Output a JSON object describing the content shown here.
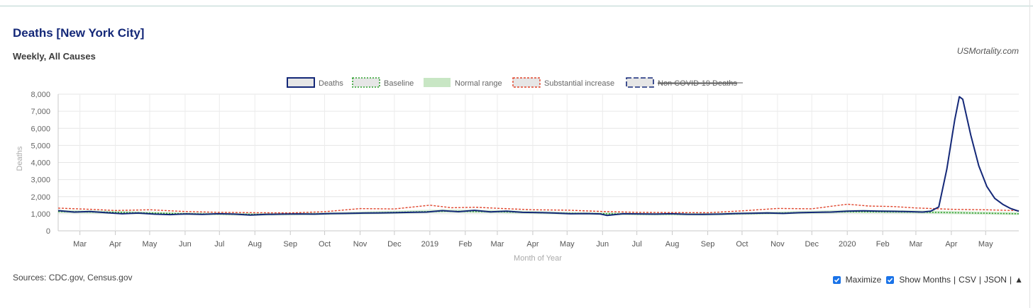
{
  "header": {
    "title": "Deaths [New York City]",
    "subtitle": "Weekly, All Causes",
    "credit": "USMortality.com"
  },
  "footer": {
    "sources": "Sources: CDC.gov, Census.gov",
    "maximize_label": "Maximize",
    "maximize_checked": true,
    "show_months_label": "Show Months",
    "show_months_checked": true,
    "csv_label": "CSV",
    "json_label": "JSON",
    "sep": "|",
    "scroll_top_label": "▲"
  },
  "chart_data": {
    "type": "line",
    "title": "Deaths [New York City]",
    "subtitle": "Weekly, All Causes",
    "xlabel": "Month of Year",
    "ylabel": "Deaths",
    "ylim": [
      0,
      8000
    ],
    "yticks": [
      0,
      1000,
      2000,
      3000,
      4000,
      5000,
      6000,
      7000,
      8000
    ],
    "ytick_labels": [
      "0",
      "1,000",
      "2,000",
      "3,000",
      "4,000",
      "5,000",
      "6,000",
      "7,000",
      "8,000"
    ],
    "x_start": "2018-02-10",
    "x_end": "2020-05-30",
    "grid": true,
    "legend_position": "top",
    "xticks": [
      {
        "date": "2018-03-01",
        "label": "Mar"
      },
      {
        "date": "2018-04-01",
        "label": "Apr"
      },
      {
        "date": "2018-05-01",
        "label": "May"
      },
      {
        "date": "2018-06-01",
        "label": "Jun"
      },
      {
        "date": "2018-07-01",
        "label": "Jul"
      },
      {
        "date": "2018-08-01",
        "label": "Aug"
      },
      {
        "date": "2018-09-01",
        "label": "Sep"
      },
      {
        "date": "2018-10-01",
        "label": "Oct"
      },
      {
        "date": "2018-11-01",
        "label": "Nov"
      },
      {
        "date": "2018-12-01",
        "label": "Dec"
      },
      {
        "date": "2019-01-01",
        "label": "2019"
      },
      {
        "date": "2019-02-01",
        "label": "Feb"
      },
      {
        "date": "2019-03-01",
        "label": "Mar"
      },
      {
        "date": "2019-04-01",
        "label": "Apr"
      },
      {
        "date": "2019-05-01",
        "label": "May"
      },
      {
        "date": "2019-06-01",
        "label": "Jun"
      },
      {
        "date": "2019-07-01",
        "label": "Jul"
      },
      {
        "date": "2019-08-01",
        "label": "Aug"
      },
      {
        "date": "2019-09-01",
        "label": "Sep"
      },
      {
        "date": "2019-10-01",
        "label": "Oct"
      },
      {
        "date": "2019-11-01",
        "label": "Nov"
      },
      {
        "date": "2019-12-01",
        "label": "Dec"
      },
      {
        "date": "2020-01-01",
        "label": "2020"
      },
      {
        "date": "2020-02-01",
        "label": "Feb"
      },
      {
        "date": "2020-03-01",
        "label": "Mar"
      },
      {
        "date": "2020-04-01",
        "label": "Apr"
      },
      {
        "date": "2020-05-01",
        "label": "May"
      }
    ],
    "series": [
      {
        "name": "Deaths",
        "color": "#142878",
        "style": "solid",
        "points": [
          [
            "2018-02-10",
            1180
          ],
          [
            "2018-02-24",
            1100
          ],
          [
            "2018-03-10",
            1130
          ],
          [
            "2018-03-24",
            1060
          ],
          [
            "2018-04-07",
            1000
          ],
          [
            "2018-04-21",
            1040
          ],
          [
            "2018-05-05",
            980
          ],
          [
            "2018-05-19",
            950
          ],
          [
            "2018-06-02",
            990
          ],
          [
            "2018-06-16",
            960
          ],
          [
            "2018-06-30",
            1000
          ],
          [
            "2018-07-14",
            980
          ],
          [
            "2018-07-28",
            920
          ],
          [
            "2018-08-11",
            960
          ],
          [
            "2018-08-25",
            980
          ],
          [
            "2018-09-08",
            990
          ],
          [
            "2018-09-22",
            980
          ],
          [
            "2018-10-06",
            1010
          ],
          [
            "2018-10-20",
            1020
          ],
          [
            "2018-11-03",
            1040
          ],
          [
            "2018-11-17",
            1050
          ],
          [
            "2018-12-01",
            1060
          ],
          [
            "2018-12-15",
            1080
          ],
          [
            "2018-12-29",
            1100
          ],
          [
            "2019-01-12",
            1180
          ],
          [
            "2019-01-26",
            1120
          ],
          [
            "2019-02-09",
            1200
          ],
          [
            "2019-02-23",
            1110
          ],
          [
            "2019-03-09",
            1150
          ],
          [
            "2019-03-23",
            1080
          ],
          [
            "2019-04-06",
            1070
          ],
          [
            "2019-04-20",
            1040
          ],
          [
            "2019-05-04",
            1000
          ],
          [
            "2019-05-18",
            1010
          ],
          [
            "2019-05-30",
            990
          ],
          [
            "2019-06-05",
            900
          ],
          [
            "2019-06-19",
            1000
          ],
          [
            "2019-07-03",
            990
          ],
          [
            "2019-07-17",
            980
          ],
          [
            "2019-07-31",
            1000
          ],
          [
            "2019-08-14",
            970
          ],
          [
            "2019-08-28",
            960
          ],
          [
            "2019-09-11",
            980
          ],
          [
            "2019-09-25",
            1010
          ],
          [
            "2019-10-09",
            1030
          ],
          [
            "2019-10-23",
            1050
          ],
          [
            "2019-11-06",
            1020
          ],
          [
            "2019-11-20",
            1060
          ],
          [
            "2019-12-04",
            1080
          ],
          [
            "2019-12-18",
            1100
          ],
          [
            "2020-01-01",
            1150
          ],
          [
            "2020-01-15",
            1170
          ],
          [
            "2020-01-29",
            1150
          ],
          [
            "2020-02-12",
            1140
          ],
          [
            "2020-02-26",
            1120
          ],
          [
            "2020-03-07",
            1100
          ],
          [
            "2020-03-14",
            1150
          ],
          [
            "2020-03-21",
            1400
          ],
          [
            "2020-03-28",
            3600
          ],
          [
            "2020-04-04",
            6500
          ],
          [
            "2020-04-08",
            7850
          ],
          [
            "2020-04-11",
            7700
          ],
          [
            "2020-04-18",
            5600
          ],
          [
            "2020-04-25",
            3800
          ],
          [
            "2020-05-02",
            2600
          ],
          [
            "2020-05-09",
            1900
          ],
          [
            "2020-05-16",
            1550
          ],
          [
            "2020-05-23",
            1300
          ],
          [
            "2020-05-30",
            1150
          ]
        ]
      },
      {
        "name": "Baseline",
        "color": "#2ca02c",
        "style": "dotted",
        "points": [
          [
            "2018-02-10",
            1130
          ],
          [
            "2018-04-01",
            1080
          ],
          [
            "2018-06-01",
            1000
          ],
          [
            "2018-08-01",
            960
          ],
          [
            "2018-10-01",
            1000
          ],
          [
            "2018-12-01",
            1080
          ],
          [
            "2019-01-15",
            1150
          ],
          [
            "2019-03-01",
            1120
          ],
          [
            "2019-05-01",
            1030
          ],
          [
            "2019-07-01",
            980
          ],
          [
            "2019-09-01",
            970
          ],
          [
            "2019-11-01",
            1040
          ],
          [
            "2020-01-01",
            1120
          ],
          [
            "2020-03-01",
            1100
          ],
          [
            "2020-05-30",
            1000
          ]
        ]
      },
      {
        "name": "Normal range",
        "color": "#c8e6c4",
        "style": "band",
        "points": [
          [
            "2018-02-10",
            1040,
            1230
          ],
          [
            "2018-04-01",
            990,
            1170
          ],
          [
            "2018-06-01",
            920,
            1080
          ],
          [
            "2018-08-01",
            880,
            1040
          ],
          [
            "2018-10-01",
            920,
            1080
          ],
          [
            "2018-12-01",
            990,
            1180
          ],
          [
            "2019-01-15",
            1060,
            1260
          ],
          [
            "2019-03-01",
            1030,
            1220
          ],
          [
            "2019-05-01",
            950,
            1110
          ],
          [
            "2019-07-01",
            900,
            1060
          ],
          [
            "2019-09-01",
            890,
            1050
          ],
          [
            "2019-11-01",
            960,
            1130
          ],
          [
            "2020-01-01",
            1030,
            1230
          ],
          [
            "2020-03-01",
            1010,
            1200
          ],
          [
            "2020-05-30",
            920,
            1090
          ]
        ]
      },
      {
        "name": "Substantial increase",
        "color": "#e0452c",
        "style": "dotted",
        "points": [
          [
            "2018-02-10",
            1330
          ],
          [
            "2018-03-10",
            1260
          ],
          [
            "2018-04-01",
            1190
          ],
          [
            "2018-05-01",
            1230
          ],
          [
            "2018-06-01",
            1130
          ],
          [
            "2018-07-01",
            1080
          ],
          [
            "2018-08-01",
            1060
          ],
          [
            "2018-09-01",
            1050
          ],
          [
            "2018-10-01",
            1120
          ],
          [
            "2018-11-01",
            1300
          ],
          [
            "2018-12-01",
            1280
          ],
          [
            "2019-01-01",
            1500
          ],
          [
            "2019-01-20",
            1350
          ],
          [
            "2019-02-10",
            1380
          ],
          [
            "2019-03-01",
            1320
          ],
          [
            "2019-04-01",
            1230
          ],
          [
            "2019-05-01",
            1210
          ],
          [
            "2019-06-01",
            1130
          ],
          [
            "2019-07-01",
            1080
          ],
          [
            "2019-08-01",
            1070
          ],
          [
            "2019-09-01",
            1060
          ],
          [
            "2019-10-01",
            1170
          ],
          [
            "2019-11-01",
            1310
          ],
          [
            "2019-12-01",
            1290
          ],
          [
            "2020-01-01",
            1560
          ],
          [
            "2020-01-20",
            1450
          ],
          [
            "2020-02-10",
            1420
          ],
          [
            "2020-03-01",
            1340
          ],
          [
            "2020-04-01",
            1260
          ],
          [
            "2020-05-01",
            1230
          ],
          [
            "2020-05-30",
            1180
          ]
        ]
      },
      {
        "name": "Non COVID-19 Deaths",
        "color": "#142878",
        "style": "dashed",
        "hidden": true,
        "points": []
      }
    ]
  }
}
